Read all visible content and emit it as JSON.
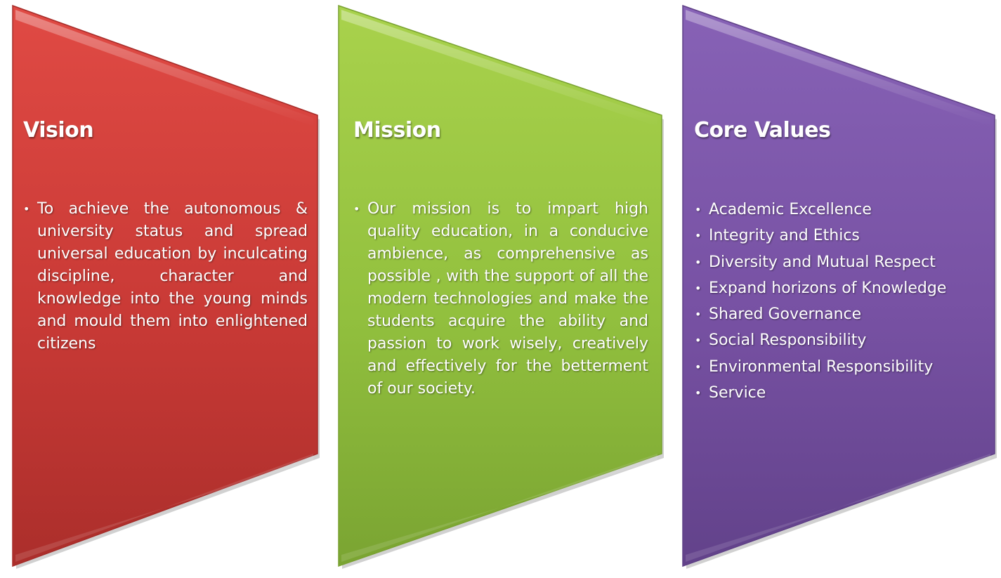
{
  "panels": {
    "vision": {
      "title": "Vision",
      "text": "To achieve the autonomous & university status and spread universal education by inculcating discipline, character and knowledge into the young minds and mould them into enlightened citizens",
      "color": "#c83a36"
    },
    "mission": {
      "title": "Mission",
      "text": "Our mission is to impart high quality education, in a conducive ambience, as comprehensive as possible , with the support of all the modern technologies and make the students acquire the ability and passion to work wisely, creatively and effectively for the betterment of our society.",
      "color": "#92c13f"
    },
    "core_values": {
      "title": "Core Values",
      "items": [
        "Academic Excellence",
        "Integrity and Ethics",
        "Diversity and Mutual Respect",
        "Expand horizons of Knowledge",
        "Shared Governance",
        "Social Responsibility",
        "Environmental Responsibility",
        "Service"
      ],
      "color": "#7650a0"
    }
  }
}
